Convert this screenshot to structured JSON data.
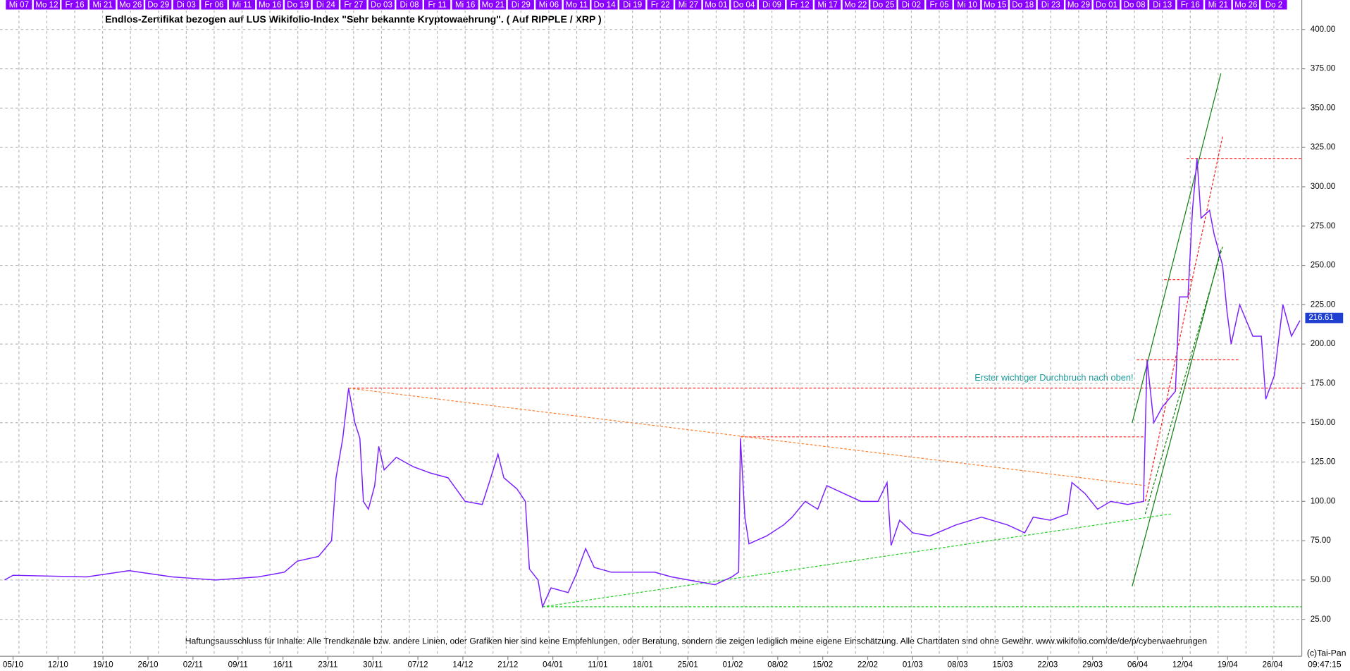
{
  "chart_data": {
    "type": "line",
    "title": "Endlos-Zertifikat bezogen auf LUS Wikifolio-Index \"Sehr bekannte Kryptowaehrung\". ( Auf RIPPLE / XRP )",
    "annotation": "Erster wichtiger Durchbruch nach oben!",
    "disclaimer": "Haftungsausschluss für Inhalte: Alle Trendkanäle bzw. andere Linien, oder Grafiken hier sind keine Empfehlungen, oder Beratung, sondern die zeigen lediglich meine eigene Einschätzung. Alle Chartdaten sind ohne Gewähr.  www.wikifolio.com/de/de/p/cyberwaehrungen",
    "copyright": "(c)Tai-Pan",
    "time": "09:47:15",
    "last_value": 216.61,
    "top_labels": [
      "Mi 07",
      "Mo 12",
      "Fr 16",
      "Mi 21",
      "Mo 26",
      "Do 29",
      "Di 03",
      "Fr 06",
      "Mi 11",
      "Mo 16",
      "Do 19",
      "Di 24",
      "Fr 27",
      "Do 03",
      "Di 08",
      "Fr 11",
      "Mi 16",
      "Mo 21",
      "Di 29",
      "Mi 06",
      "Mo 11",
      "Do 14",
      "Di 19",
      "Fr 22",
      "Mi 27",
      "Mo 01",
      "Do 04",
      "Di 09",
      "Fr 12",
      "Mi 17",
      "Mo 22",
      "Do 25",
      "Di 02",
      "Fr 05",
      "Mi 10",
      "Mo 15",
      "Do 18",
      "Di 23",
      "Mo 29",
      "Do 01",
      "Do 08",
      "Di 13",
      "Fr 16",
      "Mi 21",
      "Mo 26",
      "Do 2"
    ],
    "xlim": [
      -0.29,
      28.65
    ],
    "xticks": [
      {
        "value": 0,
        "label": "05/10"
      },
      {
        "value": 1,
        "label": "12/10"
      },
      {
        "value": 2,
        "label": "19/10"
      },
      {
        "value": 3,
        "label": "26/10"
      },
      {
        "value": 4,
        "label": "02/11"
      },
      {
        "value": 5,
        "label": "09/11"
      },
      {
        "value": 6,
        "label": "16/11"
      },
      {
        "value": 7,
        "label": "23/11"
      },
      {
        "value": 8,
        "label": "30/11"
      },
      {
        "value": 9,
        "label": "07/12"
      },
      {
        "value": 10,
        "label": "14/12"
      },
      {
        "value": 11,
        "label": "21/12"
      },
      {
        "value": 12,
        "label": "04/01"
      },
      {
        "value": 13,
        "label": "11/01"
      },
      {
        "value": 14,
        "label": "18/01"
      },
      {
        "value": 15,
        "label": "25/01"
      },
      {
        "value": 16,
        "label": "01/02"
      },
      {
        "value": 17,
        "label": "08/02"
      },
      {
        "value": 18,
        "label": "15/02"
      },
      {
        "value": 19,
        "label": "22/02"
      },
      {
        "value": 20,
        "label": "01/03"
      },
      {
        "value": 21,
        "label": "08/03"
      },
      {
        "value": 22,
        "label": "15/03"
      },
      {
        "value": 23,
        "label": "22/03"
      },
      {
        "value": 24,
        "label": "29/03"
      },
      {
        "value": 25,
        "label": "06/04"
      },
      {
        "value": 26,
        "label": "12/04"
      },
      {
        "value": 27,
        "label": "19/04"
      },
      {
        "value": 28,
        "label": "26/04"
      }
    ],
    "ylim": [
      1.5,
      418.7
    ],
    "yticks": [
      {
        "value": 25,
        "label": "25.00"
      },
      {
        "value": 50,
        "label": "50.00"
      },
      {
        "value": 75,
        "label": "75.00"
      },
      {
        "value": 100,
        "label": "100.00"
      },
      {
        "value": 125,
        "label": "125.00"
      },
      {
        "value": 150,
        "label": "150.00"
      },
      {
        "value": 175,
        "label": "175.00"
      },
      {
        "value": 200,
        "label": "200.00"
      },
      {
        "value": 225,
        "label": "225.00"
      },
      {
        "value": 250,
        "label": "250.00"
      },
      {
        "value": 275,
        "label": "275.00"
      },
      {
        "value": 300,
        "label": "300.00"
      },
      {
        "value": 325,
        "label": "325.00"
      },
      {
        "value": 350,
        "label": "350.00"
      },
      {
        "value": 375,
        "label": "375.00"
      },
      {
        "value": 400,
        "label": "400.00"
      }
    ],
    "grid": true,
    "series": [
      {
        "color": "#7b1fff",
        "x": [
          -0.19,
          0,
          1.63,
          2.58,
          3.54,
          4.5,
          5.45,
          6.03,
          6.32,
          6.79,
          7.08,
          7.18,
          7.33,
          7.46,
          7.6,
          7.71,
          7.79,
          7.9,
          8.04,
          8.13,
          8.25,
          8.52,
          8.9,
          9.28,
          9.67,
          10.05,
          10.43,
          10.62,
          10.78,
          10.91,
          11.2,
          11.39,
          11.48,
          11.67,
          11.77,
          11.96,
          12.34,
          12.54,
          12.73,
          12.92,
          13.3,
          13.68,
          14.26,
          14.64,
          15.02,
          15.6,
          15.98,
          16.13,
          16.17,
          16.27,
          16.36,
          16.75,
          17.13,
          17.32,
          17.61,
          17.89,
          18.09,
          18.47,
          18.85,
          19.23,
          19.43,
          19.52,
          19.71,
          20,
          20.38,
          20.96,
          21.53,
          22.11,
          22.49,
          22.68,
          23.06,
          23.44,
          23.54,
          23.83,
          24.11,
          24.4,
          24.78,
          25.13,
          25.21,
          25.36,
          25.55,
          25.84,
          25.93,
          26.12,
          26.22,
          26.32,
          26.41,
          26.6,
          26.7,
          26.89,
          26.99,
          27.08,
          27.27,
          27.56,
          27.75,
          27.85,
          28.04,
          28.23,
          28.42,
          28.61
        ],
        "values": [
          50,
          53,
          52,
          56,
          52,
          50,
          52,
          55,
          62,
          65,
          75,
          115,
          140,
          172,
          150,
          140,
          100,
          95,
          110,
          135,
          120,
          128,
          122,
          118,
          115,
          100,
          98,
          115,
          130,
          115,
          108,
          100,
          57,
          50,
          33,
          45,
          42,
          55,
          70,
          58,
          55,
          55,
          55,
          52,
          50,
          47,
          52,
          55,
          140,
          90,
          73,
          78,
          85,
          90,
          100,
          95,
          110,
          105,
          100,
          100,
          112,
          72,
          88,
          80,
          78,
          85,
          90,
          85,
          80,
          90,
          88,
          92,
          112,
          105,
          95,
          100,
          98,
          100,
          190,
          150,
          160,
          170,
          230,
          230,
          285,
          318,
          280,
          285,
          270,
          250,
          220,
          200,
          225,
          205,
          205,
          165,
          180,
          225,
          205,
          215
        ]
      }
    ],
    "trendlines": [
      {
        "color": "#ff2020",
        "style": "dashed",
        "x": [
          7.46,
          28.65
        ],
        "y": [
          172,
          172
        ]
      },
      {
        "color": "#ff2020",
        "style": "dashed",
        "x": [
          16.17,
          25.17
        ],
        "y": [
          141,
          141
        ]
      },
      {
        "color": "#ff2020",
        "style": "dashed",
        "x": [
          24.98,
          27.27
        ],
        "y": [
          190,
          190
        ]
      },
      {
        "color": "#ff2020",
        "style": "dashed",
        "x": [
          26.09,
          28.65
        ],
        "y": [
          318,
          318
        ]
      },
      {
        "color": "#ff2020",
        "style": "dashed",
        "x": [
          25.59,
          26.22
        ],
        "y": [
          241,
          241
        ]
      },
      {
        "color": "#ff8030",
        "style": "dashed",
        "x": [
          7.46,
          25.17
        ],
        "y": [
          172,
          110
        ]
      },
      {
        "color": "#20d020",
        "style": "dashed",
        "x": [
          11.77,
          25.74
        ],
        "y": [
          33,
          92
        ]
      },
      {
        "color": "#20d020",
        "style": "dashed",
        "x": [
          11.77,
          28.65
        ],
        "y": [
          33,
          33
        ]
      },
      {
        "color": "#108010",
        "style": "solid",
        "x": [
          24.88,
          26.85
        ],
        "y": [
          46,
          260
        ]
      },
      {
        "color": "#108010",
        "style": "solid",
        "x": [
          24.88,
          26.85
        ],
        "y": [
          150,
          372
        ]
      },
      {
        "color": "#ff2020",
        "style": "dashed",
        "x": [
          25.17,
          26.89
        ],
        "y": [
          100,
          332
        ]
      },
      {
        "color": "#108010",
        "style": "dashed",
        "x": [
          25.17,
          26.89
        ],
        "y": [
          92,
          262
        ]
      }
    ]
  }
}
